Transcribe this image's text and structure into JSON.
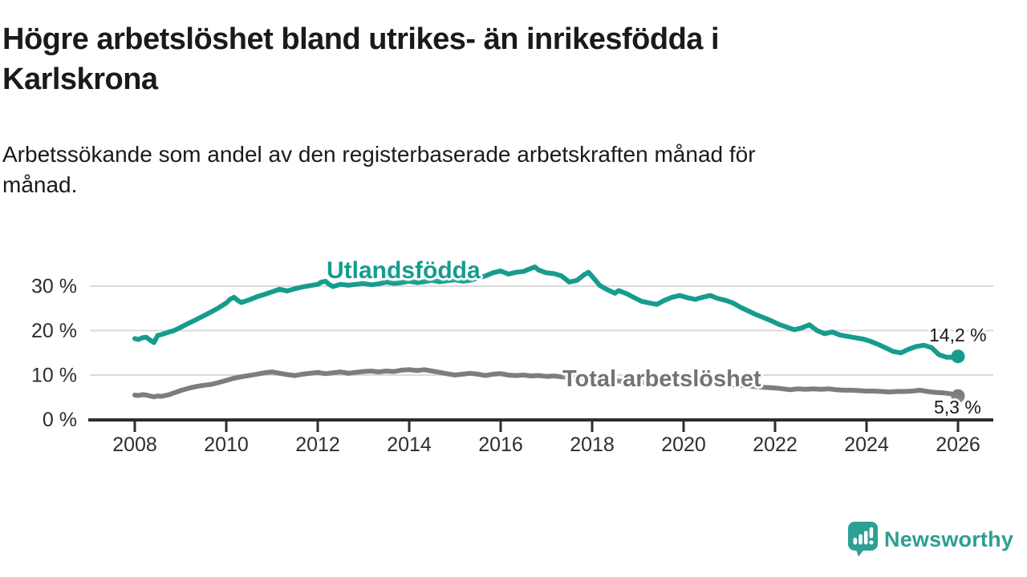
{
  "header": {
    "title_lines": [
      "Högre arbetslöshet bland utrikes- än inrikesfödda i",
      "Karlskrona"
    ],
    "subtitle_lines": [
      "Arbetssökande som andel av den registerbaserade arbetskraften månad för",
      "månad."
    ]
  },
  "footer": {
    "brand": "Newsworthy"
  },
  "colors": {
    "teal": "#169c8e",
    "gray": "#7d7d7d",
    "gray_label": "#737373",
    "axis": "#2d2d2d",
    "grid": "#dadada",
    "tick_text": "#2e2e2e",
    "brand_teal": "#2d9f93",
    "annotation_text": "#191919",
    "background": "#ffffff"
  },
  "chart_data": {
    "type": "line",
    "title": "Högre arbetslöshet bland utrikes- än inrikesfödda i Karlskrona",
    "subtitle": "Arbetssökande som andel av den registerbaserade arbetskraften månad för månad.",
    "xlabel": "",
    "ylabel": "",
    "grid": "horizontal",
    "legend_position": "inline-labels",
    "x_axis": {
      "range": [
        2007.8,
        2026.8
      ],
      "ticks": [
        {
          "year": 2008,
          "label": "2008"
        },
        {
          "year": 2010,
          "label": "2010"
        },
        {
          "year": 2012,
          "label": "2012"
        },
        {
          "year": 2014,
          "label": "2014"
        },
        {
          "year": 2016,
          "label": "2016"
        },
        {
          "year": 2018,
          "label": "2018"
        },
        {
          "year": 2020,
          "label": "2020"
        },
        {
          "year": 2022,
          "label": "2022"
        },
        {
          "year": 2024,
          "label": "2024"
        },
        {
          "year": 2026,
          "label": "2026"
        }
      ]
    },
    "y_axis": {
      "range": [
        0,
        36
      ],
      "ticks": [
        {
          "value": 0,
          "label": "0 %"
        },
        {
          "value": 10,
          "label": "10 %"
        },
        {
          "value": 20,
          "label": "20 %"
        },
        {
          "value": 30,
          "label": "30 %"
        }
      ]
    },
    "series": [
      {
        "name": "Utlandsfödda",
        "color_key": "teal",
        "end_value": 14.2,
        "end_label": "14,2 %",
        "points": [
          [
            2008.0,
            18.2
          ],
          [
            2008.08,
            18.0
          ],
          [
            2008.17,
            18.4
          ],
          [
            2008.25,
            18.5
          ],
          [
            2008.33,
            17.9
          ],
          [
            2008.42,
            17.3
          ],
          [
            2008.5,
            18.9
          ],
          [
            2008.58,
            19.1
          ],
          [
            2008.67,
            19.4
          ],
          [
            2008.75,
            19.7
          ],
          [
            2008.83,
            19.9
          ],
          [
            2008.92,
            20.3
          ],
          [
            2009.0,
            20.7
          ],
          [
            2009.17,
            21.6
          ],
          [
            2009.33,
            22.4
          ],
          [
            2009.5,
            23.3
          ],
          [
            2009.67,
            24.2
          ],
          [
            2009.83,
            25.1
          ],
          [
            2010.0,
            26.2
          ],
          [
            2010.08,
            27.0
          ],
          [
            2010.17,
            27.5
          ],
          [
            2010.25,
            26.8
          ],
          [
            2010.33,
            26.3
          ],
          [
            2010.5,
            26.9
          ],
          [
            2010.67,
            27.6
          ],
          [
            2010.83,
            28.1
          ],
          [
            2011.0,
            28.7
          ],
          [
            2011.17,
            29.3
          ],
          [
            2011.33,
            28.9
          ],
          [
            2011.5,
            29.4
          ],
          [
            2011.67,
            29.8
          ],
          [
            2011.83,
            30.1
          ],
          [
            2012.0,
            30.4
          ],
          [
            2012.08,
            30.9
          ],
          [
            2012.17,
            31.1
          ],
          [
            2012.25,
            30.4
          ],
          [
            2012.33,
            29.9
          ],
          [
            2012.5,
            30.4
          ],
          [
            2012.67,
            30.2
          ],
          [
            2012.83,
            30.4
          ],
          [
            2013.0,
            30.6
          ],
          [
            2013.17,
            30.3
          ],
          [
            2013.33,
            30.5
          ],
          [
            2013.5,
            30.9
          ],
          [
            2013.67,
            30.6
          ],
          [
            2013.83,
            30.8
          ],
          [
            2014.0,
            31.1
          ],
          [
            2014.17,
            30.8
          ],
          [
            2014.33,
            31.0
          ],
          [
            2014.5,
            31.3
          ],
          [
            2014.67,
            31.0
          ],
          [
            2014.83,
            31.2
          ],
          [
            2015.0,
            31.4
          ],
          [
            2015.17,
            31.1
          ],
          [
            2015.33,
            31.3
          ],
          [
            2015.5,
            31.8
          ],
          [
            2015.67,
            32.3
          ],
          [
            2015.83,
            33.0
          ],
          [
            2016.0,
            33.4
          ],
          [
            2016.17,
            32.7
          ],
          [
            2016.33,
            33.1
          ],
          [
            2016.5,
            33.3
          ],
          [
            2016.67,
            34.0
          ],
          [
            2016.75,
            34.3
          ],
          [
            2016.83,
            33.6
          ],
          [
            2017.0,
            33.0
          ],
          [
            2017.17,
            32.8
          ],
          [
            2017.33,
            32.3
          ],
          [
            2017.5,
            30.9
          ],
          [
            2017.67,
            31.3
          ],
          [
            2017.83,
            32.6
          ],
          [
            2017.92,
            33.1
          ],
          [
            2018.0,
            32.2
          ],
          [
            2018.17,
            30.1
          ],
          [
            2018.33,
            29.2
          ],
          [
            2018.5,
            28.4
          ],
          [
            2018.58,
            29.0
          ],
          [
            2018.75,
            28.3
          ],
          [
            2018.92,
            27.4
          ],
          [
            2019.08,
            26.6
          ],
          [
            2019.25,
            26.2
          ],
          [
            2019.42,
            25.9
          ],
          [
            2019.58,
            26.8
          ],
          [
            2019.75,
            27.5
          ],
          [
            2019.92,
            27.9
          ],
          [
            2020.08,
            27.4
          ],
          [
            2020.25,
            27.0
          ],
          [
            2020.42,
            27.5
          ],
          [
            2020.58,
            27.9
          ],
          [
            2020.75,
            27.2
          ],
          [
            2020.92,
            26.8
          ],
          [
            2021.08,
            26.2
          ],
          [
            2021.25,
            25.2
          ],
          [
            2021.42,
            24.4
          ],
          [
            2021.58,
            23.6
          ],
          [
            2021.75,
            22.9
          ],
          [
            2021.92,
            22.2
          ],
          [
            2022.08,
            21.4
          ],
          [
            2022.25,
            20.8
          ],
          [
            2022.42,
            20.2
          ],
          [
            2022.58,
            20.6
          ],
          [
            2022.75,
            21.3
          ],
          [
            2022.92,
            20.0
          ],
          [
            2023.08,
            19.3
          ],
          [
            2023.25,
            19.7
          ],
          [
            2023.42,
            19.0
          ],
          [
            2023.58,
            18.7
          ],
          [
            2023.75,
            18.4
          ],
          [
            2023.92,
            18.1
          ],
          [
            2024.08,
            17.6
          ],
          [
            2024.25,
            16.9
          ],
          [
            2024.42,
            16.1
          ],
          [
            2024.58,
            15.3
          ],
          [
            2024.75,
            15.0
          ],
          [
            2024.92,
            15.8
          ],
          [
            2025.08,
            16.4
          ],
          [
            2025.25,
            16.7
          ],
          [
            2025.42,
            16.2
          ],
          [
            2025.58,
            14.6
          ],
          [
            2025.75,
            14.0
          ],
          [
            2025.92,
            14.0
          ],
          [
            2026.0,
            14.2
          ]
        ]
      },
      {
        "name": "Total arbetslöshet",
        "color_key": "gray",
        "end_value": 5.3,
        "end_label": "5,3 %",
        "points": [
          [
            2008.0,
            5.5
          ],
          [
            2008.08,
            5.4
          ],
          [
            2008.17,
            5.6
          ],
          [
            2008.25,
            5.5
          ],
          [
            2008.33,
            5.3
          ],
          [
            2008.42,
            5.1
          ],
          [
            2008.5,
            5.3
          ],
          [
            2008.58,
            5.2
          ],
          [
            2008.67,
            5.4
          ],
          [
            2008.75,
            5.6
          ],
          [
            2008.83,
            5.9
          ],
          [
            2008.92,
            6.2
          ],
          [
            2009.0,
            6.5
          ],
          [
            2009.17,
            7.0
          ],
          [
            2009.33,
            7.4
          ],
          [
            2009.5,
            7.7
          ],
          [
            2009.67,
            7.9
          ],
          [
            2009.83,
            8.3
          ],
          [
            2010.0,
            8.8
          ],
          [
            2010.17,
            9.3
          ],
          [
            2010.33,
            9.6
          ],
          [
            2010.5,
            9.9
          ],
          [
            2010.67,
            10.2
          ],
          [
            2010.83,
            10.5
          ],
          [
            2011.0,
            10.7
          ],
          [
            2011.17,
            10.4
          ],
          [
            2011.33,
            10.1
          ],
          [
            2011.5,
            9.9
          ],
          [
            2011.67,
            10.2
          ],
          [
            2011.83,
            10.4
          ],
          [
            2012.0,
            10.6
          ],
          [
            2012.17,
            10.3
          ],
          [
            2012.33,
            10.5
          ],
          [
            2012.5,
            10.7
          ],
          [
            2012.67,
            10.4
          ],
          [
            2012.83,
            10.6
          ],
          [
            2013.0,
            10.8
          ],
          [
            2013.17,
            10.9
          ],
          [
            2013.33,
            10.7
          ],
          [
            2013.5,
            10.9
          ],
          [
            2013.67,
            10.8
          ],
          [
            2013.83,
            11.1
          ],
          [
            2014.0,
            11.2
          ],
          [
            2014.17,
            11.0
          ],
          [
            2014.33,
            11.2
          ],
          [
            2014.5,
            10.9
          ],
          [
            2014.67,
            10.6
          ],
          [
            2014.83,
            10.3
          ],
          [
            2015.0,
            10.0
          ],
          [
            2015.17,
            10.2
          ],
          [
            2015.33,
            10.4
          ],
          [
            2015.5,
            10.2
          ],
          [
            2015.67,
            9.9
          ],
          [
            2015.83,
            10.2
          ],
          [
            2016.0,
            10.3
          ],
          [
            2016.17,
            10.0
          ],
          [
            2016.33,
            9.9
          ],
          [
            2016.5,
            10.0
          ],
          [
            2016.67,
            9.8
          ],
          [
            2016.83,
            9.9
          ],
          [
            2017.0,
            9.7
          ],
          [
            2017.17,
            9.8
          ],
          [
            2017.33,
            9.6
          ],
          [
            2017.5,
            9.5
          ],
          [
            2017.67,
            9.4
          ],
          [
            2017.83,
            9.2
          ],
          [
            2018.0,
            9.0
          ],
          [
            2018.33,
            8.8
          ],
          [
            2018.67,
            8.6
          ],
          [
            2019.0,
            8.4
          ],
          [
            2019.33,
            8.2
          ],
          [
            2019.67,
            8.1
          ],
          [
            2020.0,
            8.0
          ],
          [
            2020.33,
            8.4
          ],
          [
            2020.58,
            8.6
          ],
          [
            2020.83,
            8.2
          ],
          [
            2021.0,
            7.9
          ],
          [
            2021.33,
            7.6
          ],
          [
            2021.67,
            7.3
          ],
          [
            2022.0,
            7.1
          ],
          [
            2022.17,
            6.9
          ],
          [
            2022.33,
            6.7
          ],
          [
            2022.5,
            6.9
          ],
          [
            2022.67,
            6.8
          ],
          [
            2022.83,
            6.9
          ],
          [
            2023.0,
            6.8
          ],
          [
            2023.17,
            6.9
          ],
          [
            2023.33,
            6.7
          ],
          [
            2023.5,
            6.6
          ],
          [
            2023.67,
            6.6
          ],
          [
            2023.83,
            6.5
          ],
          [
            2024.0,
            6.4
          ],
          [
            2024.17,
            6.4
          ],
          [
            2024.33,
            6.3
          ],
          [
            2024.5,
            6.2
          ],
          [
            2024.67,
            6.3
          ],
          [
            2024.83,
            6.3
          ],
          [
            2025.0,
            6.4
          ],
          [
            2025.17,
            6.6
          ],
          [
            2025.33,
            6.3
          ],
          [
            2025.5,
            6.1
          ],
          [
            2025.67,
            6.0
          ],
          [
            2025.83,
            5.8
          ],
          [
            2026.0,
            5.3
          ]
        ]
      }
    ]
  }
}
